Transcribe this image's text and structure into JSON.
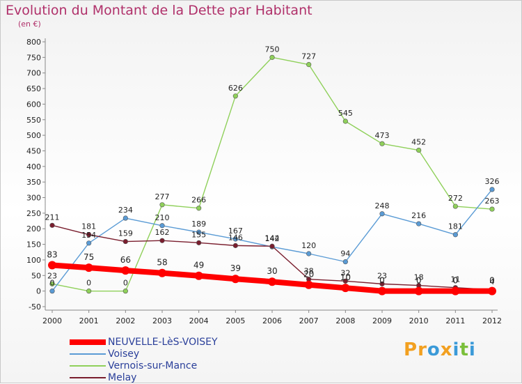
{
  "title": "Evolution du Montant de la Dette par Habitant",
  "unit": "(en €)",
  "watermark": {
    "text": "Proxiti",
    "letters": [
      "P",
      "r",
      "o",
      "x",
      "i",
      "t",
      "i"
    ],
    "colors": [
      "#f2a020",
      "#f2a020",
      "#3b9ad8",
      "#f2a020",
      "#3b9ad8",
      "#7bbf3a",
      "#3b9ad8"
    ]
  },
  "colors": {
    "NEUVELLE-LèS-VOISEY": "#ff0000",
    "Voisey": "#5a9bd5",
    "Vernois-sur-Mance": "#8fd05a",
    "Melay": "#7a1e2e"
  },
  "chart_data": {
    "type": "line",
    "title": "Evolution du Montant de la Dette par Habitant",
    "ylabel": "(en €)",
    "ylim": [
      -50,
      800
    ],
    "yticks": [
      -50,
      0,
      50,
      100,
      150,
      200,
      250,
      300,
      350,
      400,
      450,
      500,
      550,
      600,
      650,
      700,
      750,
      800
    ],
    "grid": false,
    "legend": "bottom-left",
    "x": [
      "2000",
      "2001",
      "2002",
      "2003",
      "2004",
      "2005",
      "2006",
      "2007",
      "2008",
      "2009",
      "2010",
      "2011",
      "2012"
    ],
    "series": [
      {
        "name": "NEUVELLE-LèS-VOISEY",
        "values": [
          83,
          75,
          66,
          58,
          49,
          39,
          30,
          20,
          10,
          0,
          0,
          0,
          0
        ],
        "labels": [
          "83",
          "75",
          "66",
          "58",
          "49",
          "39",
          "30",
          "20",
          "10",
          "0",
          "0",
          "0",
          "0"
        ]
      },
      {
        "name": "Voisey",
        "values": [
          0,
          154,
          234,
          210,
          189,
          167,
          142,
          120,
          94,
          248,
          216,
          181,
          326
        ],
        "labels": [
          "0",
          "154",
          "234",
          "210",
          "189",
          "167",
          "142",
          "120",
          "94",
          "248",
          "216",
          "181",
          "326"
        ]
      },
      {
        "name": "Vernois-sur-Mance",
        "values": [
          23,
          0,
          0,
          277,
          266,
          626,
          750,
          727,
          545,
          473,
          452,
          272,
          263
        ],
        "labels": [
          "23",
          "0",
          "0",
          "277",
          "266",
          "626",
          "750",
          "727",
          "545",
          "473",
          "452",
          "272",
          "263"
        ]
      },
      {
        "name": "Melay",
        "values": [
          211,
          181,
          159,
          162,
          155,
          146,
          144,
          38,
          32,
          23,
          18,
          11,
          4
        ],
        "labels": [
          "211",
          "181",
          "159",
          "162",
          "155",
          "146",
          "144",
          "38",
          "32",
          "23",
          "18",
          "11",
          "4"
        ]
      }
    ]
  }
}
